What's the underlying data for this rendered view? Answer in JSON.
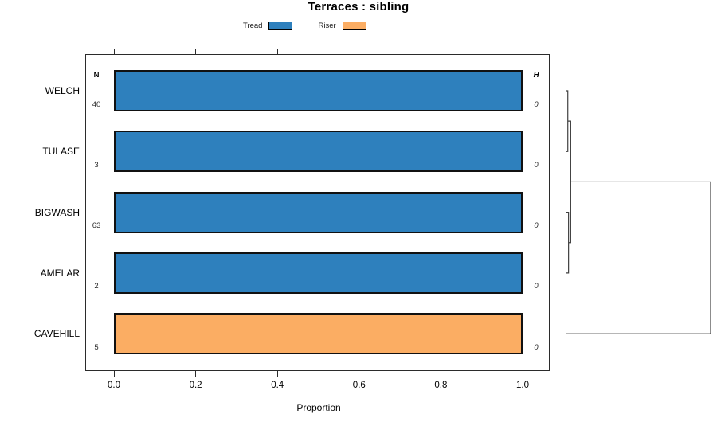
{
  "title": "Terraces : sibling",
  "legend": [
    {
      "label": "Tread",
      "color": "#2E80BD"
    },
    {
      "label": "Riser",
      "color": "#FBAD63"
    }
  ],
  "columns": {
    "n_header": "N",
    "h_header": "H"
  },
  "rows": [
    {
      "label": "WELCH",
      "n": "40",
      "h": "0",
      "category": "Tread",
      "proportion": 1.0
    },
    {
      "label": "TULASE",
      "n": "3",
      "h": "0",
      "category": "Tread",
      "proportion": 1.0
    },
    {
      "label": "BIGWASH",
      "n": "63",
      "h": "0",
      "category": "Tread",
      "proportion": 1.0
    },
    {
      "label": "AMELAR",
      "n": "2",
      "h": "0",
      "category": "Tread",
      "proportion": 1.0
    },
    {
      "label": "CAVEHILL",
      "n": "5",
      "h": "0",
      "category": "Riser",
      "proportion": 1.0
    }
  ],
  "axis": {
    "label": "Proportion",
    "ticks": [
      {
        "label": "0.0",
        "value": 0.0
      },
      {
        "label": "0.2",
        "value": 0.2
      },
      {
        "label": "0.4",
        "value": 0.4
      },
      {
        "label": "0.6",
        "value": 0.6
      },
      {
        "label": "0.8",
        "value": 0.8
      },
      {
        "label": "1.0",
        "value": 1.0
      }
    ]
  },
  "chart_data": {
    "type": "bar",
    "orientation": "horizontal",
    "stacked": true,
    "title": "Terraces : sibling",
    "xlabel": "Proportion",
    "xlim": [
      0,
      1
    ],
    "grid": false,
    "legend_position": "top",
    "categories": [
      "WELCH",
      "TULASE",
      "BIGWASH",
      "AMELAR",
      "CAVEHILL"
    ],
    "series": [
      {
        "name": "Tread",
        "color": "#2E80BD",
        "values": [
          1.0,
          1.0,
          1.0,
          1.0,
          0.0
        ]
      },
      {
        "name": "Riser",
        "color": "#FBAD63",
        "values": [
          0.0,
          0.0,
          0.0,
          0.0,
          1.0
        ]
      }
    ],
    "annotations": {
      "N": [
        40,
        3,
        63,
        2,
        5
      ],
      "H": [
        0,
        0,
        0,
        0,
        0
      ]
    },
    "dendrogram": {
      "comment_structure": "leaves are category indices 0-4; merge ids start at 5",
      "merges": [
        {
          "children": [
            0,
            1
          ],
          "height": 0.015
        },
        {
          "children": [
            2,
            3
          ],
          "height": 0.02
        },
        {
          "children": [
            5,
            6
          ],
          "height": 0.035
        },
        {
          "children": [
            7,
            4
          ],
          "height": 1.0
        }
      ],
      "line_color": "#3f3f3f"
    }
  }
}
